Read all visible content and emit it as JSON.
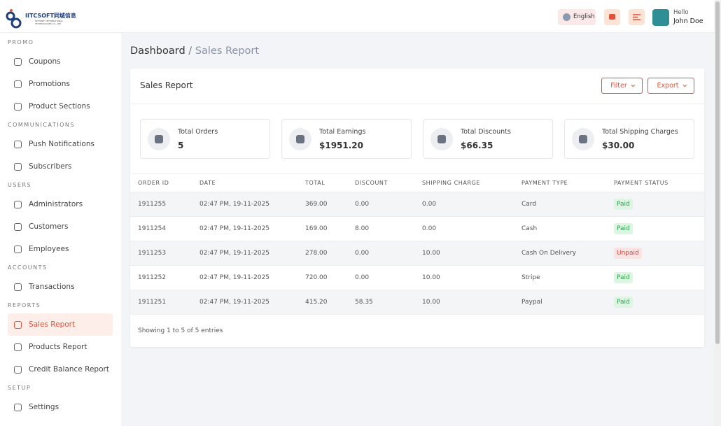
{
  "logo": {
    "name": "IITCSOFT同城信息",
    "tagline": "INTERNET INTERNATIONAL TECHNOLOGIES CO., LTD"
  },
  "header": {
    "language": "English",
    "greeting": "Hello",
    "user": "John Doe"
  },
  "sidebar": [
    {
      "section": "PROMO",
      "items": [
        "Coupons",
        "Promotions",
        "Product Sections"
      ]
    },
    {
      "section": "COMMUNICATIONS",
      "items": [
        "Push Notifications",
        "Subscribers"
      ]
    },
    {
      "section": "USERS",
      "items": [
        "Administrators",
        "Customers",
        "Employees"
      ]
    },
    {
      "section": "ACCOUNTS",
      "items": [
        "Transactions"
      ]
    },
    {
      "section": "REPORTS",
      "items": [
        "Sales Report",
        "Products Report",
        "Credit Balance Report"
      ]
    },
    {
      "section": "SETUP",
      "items": [
        "Settings"
      ]
    }
  ],
  "sidebar_active": {
    "section": 4,
    "item": 0
  },
  "breadcrumb": {
    "parent": "Dashboard",
    "separator": "/",
    "current": "Sales Report"
  },
  "card": {
    "title": "Sales Report",
    "buttons": [
      "Filter",
      "Export"
    ]
  },
  "stats": [
    {
      "label": "Total Orders",
      "value": "5"
    },
    {
      "label": "Total Earnings",
      "value": "$1951.20"
    },
    {
      "label": "Total Discounts",
      "value": "$66.35"
    },
    {
      "label": "Total Shipping Charges",
      "value": "$30.00"
    }
  ],
  "table": {
    "columns": [
      "ORDER ID",
      "DATE",
      "TOTAL",
      "DISCOUNT",
      "SHIPPING CHARGE",
      "PAYMENT TYPE",
      "PAYMENT STATUS"
    ],
    "rows": [
      [
        "1911255",
        "02:47 PM, 19-11-2025",
        "369.00",
        "0.00",
        "0.00",
        "Card",
        "Paid"
      ],
      [
        "1911254",
        "02:47 PM, 19-11-2025",
        "169.00",
        "8.00",
        "0.00",
        "Cash",
        "Paid"
      ],
      [
        "1911253",
        "02:47 PM, 19-11-2025",
        "278.00",
        "0.00",
        "10.00",
        "Cash On Delivery",
        "Unpaid"
      ],
      [
        "1911252",
        "02:47 PM, 19-11-2025",
        "720.00",
        "0.00",
        "10.00",
        "Stripe",
        "Paid"
      ],
      [
        "1911251",
        "02:47 PM, 19-11-2025",
        "415.20",
        "58.35",
        "10.00",
        "Paypal",
        "Paid"
      ]
    ],
    "status_colors": [
      "green",
      "green",
      "red",
      "green",
      "green"
    ]
  },
  "footer": "Showing 1 to 5 of 5 entries"
}
